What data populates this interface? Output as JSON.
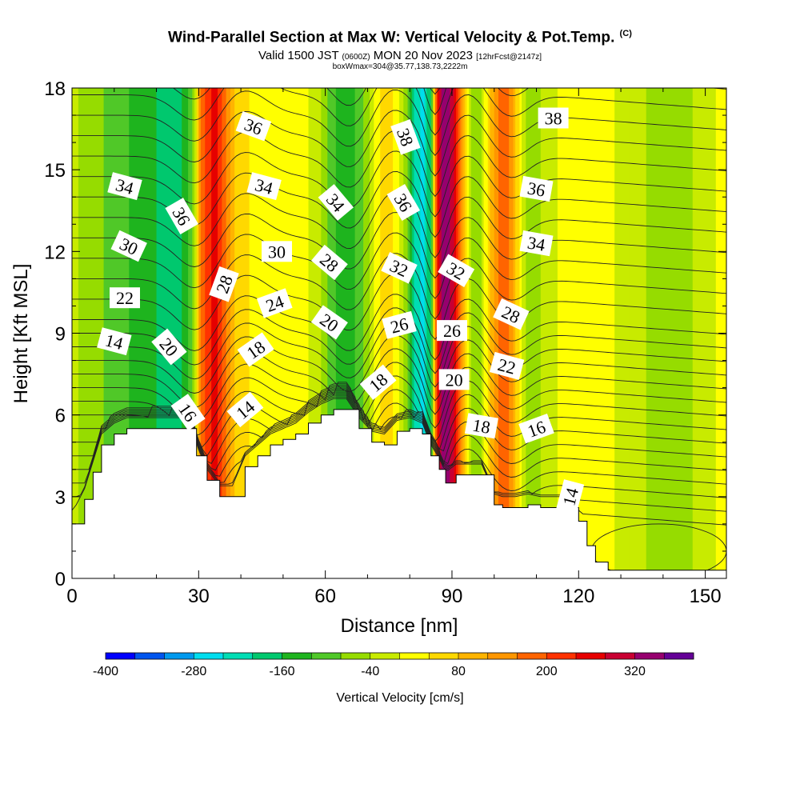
{
  "title": {
    "main": "Wind-Parallel Section at Max W: Vertical Velocity & Pot.Temp.",
    "copyright": "(C)",
    "valid_prefix": "Valid 1500 JST",
    "utc": "(0600Z)",
    "valid_date": "MON 20 Nov 2023",
    "forecast": "[12hrFcst@2147z]",
    "box_info": "boxWmax=304@35.77,138.73,2222m"
  },
  "chart_data": {
    "type": "heatmap",
    "xlabel": "Distance [nm]",
    "ylabel": "Height [Kft MSL]",
    "xlim": [
      0,
      155
    ],
    "ylim": [
      0,
      18
    ],
    "x_ticks": [
      0,
      30,
      60,
      90,
      120,
      150
    ],
    "y_ticks": [
      0,
      3,
      6,
      9,
      12,
      15,
      18
    ],
    "x_tick_labels": [
      "0",
      "30",
      "60",
      "90",
      "120",
      "150"
    ],
    "y_tick_labels": [
      "0",
      "3",
      "6",
      "9",
      "12",
      "15",
      "18"
    ],
    "terrain_kft": [
      [
        0,
        2.0
      ],
      [
        3,
        2.9
      ],
      [
        5,
        3.9
      ],
      [
        7,
        4.9
      ],
      [
        10,
        5.3
      ],
      [
        13,
        5.5
      ],
      [
        16,
        5.5
      ],
      [
        19,
        5.5
      ],
      [
        22,
        5.5
      ],
      [
        25,
        5.5
      ],
      [
        28,
        5.5
      ],
      [
        29.5,
        4.5
      ],
      [
        32,
        3.6
      ],
      [
        35,
        3.0
      ],
      [
        38,
        3.0
      ],
      [
        41,
        4.1
      ],
      [
        44,
        4.5
      ],
      [
        47,
        4.9
      ],
      [
        50,
        5.1
      ],
      [
        53,
        5.3
      ],
      [
        56,
        5.7
      ],
      [
        59,
        6.0
      ],
      [
        62,
        6.2
      ],
      [
        65,
        6.2
      ],
      [
        68,
        5.5
      ],
      [
        71,
        5.0
      ],
      [
        74,
        4.9
      ],
      [
        77,
        5.4
      ],
      [
        80,
        5.5
      ],
      [
        83,
        5.3
      ],
      [
        85,
        4.5
      ],
      [
        87,
        4.0
      ],
      [
        88.5,
        3.5
      ],
      [
        91,
        3.8
      ],
      [
        94,
        3.8
      ],
      [
        97,
        3.8
      ],
      [
        100,
        2.7
      ],
      [
        102,
        2.6
      ],
      [
        105,
        2.6
      ],
      [
        108,
        2.7
      ],
      [
        111,
        2.6
      ],
      [
        114,
        2.6
      ],
      [
        117,
        2.6
      ],
      [
        120,
        2.1
      ],
      [
        122,
        1.2
      ],
      [
        124,
        0.6
      ],
      [
        127,
        0.3
      ],
      [
        135,
        0.3
      ],
      [
        145,
        0.3
      ],
      [
        155,
        0.3
      ]
    ],
    "vertical_velocity_bands": [
      {
        "x": 0,
        "w": -30
      },
      {
        "x": 5,
        "w": -60
      },
      {
        "x": 10,
        "w": -100
      },
      {
        "x": 15,
        "w": -130
      },
      {
        "x": 20,
        "w": -160
      },
      {
        "x": 24,
        "w": -190
      },
      {
        "x": 27,
        "w": -150
      },
      {
        "x": 29,
        "w": -60
      },
      {
        "x": 30,
        "w": 120
      },
      {
        "x": 32,
        "w": 230
      },
      {
        "x": 34,
        "w": 250
      },
      {
        "x": 36,
        "w": 170
      },
      {
        "x": 38,
        "w": 90
      },
      {
        "x": 40,
        "w": 60
      },
      {
        "x": 44,
        "w": 20
      },
      {
        "x": 48,
        "w": 0
      },
      {
        "x": 52,
        "w": 10
      },
      {
        "x": 56,
        "w": 0
      },
      {
        "x": 59,
        "w": -40
      },
      {
        "x": 61,
        "w": -90
      },
      {
        "x": 63,
        "w": -130
      },
      {
        "x": 65,
        "w": -150
      },
      {
        "x": 67,
        "w": -120
      },
      {
        "x": 69,
        "w": -80
      },
      {
        "x": 71,
        "w": -20
      },
      {
        "x": 73,
        "w": 40
      },
      {
        "x": 75,
        "w": 60
      },
      {
        "x": 77,
        "w": 20
      },
      {
        "x": 79,
        "w": -60
      },
      {
        "x": 81,
        "w": -200
      },
      {
        "x": 83,
        "w": -260
      },
      {
        "x": 85,
        "w": -150
      },
      {
        "x": 86,
        "w": 120
      },
      {
        "x": 87,
        "w": 300
      },
      {
        "x": 88,
        "w": 360
      },
      {
        "x": 89.5,
        "w": 330
      },
      {
        "x": 91,
        "w": 230
      },
      {
        "x": 93,
        "w": 60
      },
      {
        "x": 95,
        "w": -70
      },
      {
        "x": 97,
        "w": -40
      },
      {
        "x": 99,
        "w": 70
      },
      {
        "x": 101,
        "w": 170
      },
      {
        "x": 103,
        "w": 200
      },
      {
        "x": 105,
        "w": 90
      },
      {
        "x": 108,
        "w": -70
      },
      {
        "x": 112,
        "w": -30
      },
      {
        "x": 117,
        "w": 20
      },
      {
        "x": 121,
        "w": 40
      },
      {
        "x": 126,
        "w": 20
      },
      {
        "x": 131,
        "w": -20
      },
      {
        "x": 136,
        "w": -40
      },
      {
        "x": 142,
        "w": -60
      },
      {
        "x": 147,
        "w": -40
      },
      {
        "x": 151,
        "w": -10
      },
      {
        "x": 155,
        "w": 20
      }
    ],
    "contour_labels": [
      {
        "text": "36",
        "x": 43,
        "y": 16.6,
        "rot": 20
      },
      {
        "text": "34",
        "x": 12.5,
        "y": 14.4,
        "rot": 15
      },
      {
        "text": "36",
        "x": 26,
        "y": 13.3,
        "rot": 60
      },
      {
        "text": "34",
        "x": 45.5,
        "y": 14.4,
        "rot": 15
      },
      {
        "text": "30",
        "x": 13.5,
        "y": 12.2,
        "rot": 25
      },
      {
        "text": "30",
        "x": 48.5,
        "y": 12.0,
        "rot": 0
      },
      {
        "text": "22",
        "x": 12.5,
        "y": 10.3,
        "rot": 0
      },
      {
        "text": "28",
        "x": 36,
        "y": 10.8,
        "rot": -70
      },
      {
        "text": "24",
        "x": 48,
        "y": 10.1,
        "rot": -20
      },
      {
        "text": "14",
        "x": 10,
        "y": 8.7,
        "rot": 15
      },
      {
        "text": "20",
        "x": 23,
        "y": 8.5,
        "rot": 50
      },
      {
        "text": "18",
        "x": 43.5,
        "y": 8.4,
        "rot": -35
      },
      {
        "text": "16",
        "x": 27.5,
        "y": 6.1,
        "rot": 55
      },
      {
        "text": "14",
        "x": 41,
        "y": 6.2,
        "rot": -40
      },
      {
        "text": "34",
        "x": 62.5,
        "y": 13.8,
        "rot": 50
      },
      {
        "text": "28",
        "x": 61,
        "y": 11.6,
        "rot": 40
      },
      {
        "text": "20",
        "x": 61,
        "y": 9.4,
        "rot": 35
      },
      {
        "text": "38",
        "x": 79,
        "y": 16.2,
        "rot": 70
      },
      {
        "text": "36",
        "x": 78.5,
        "y": 13.8,
        "rot": 60
      },
      {
        "text": "32",
        "x": 77.5,
        "y": 11.4,
        "rot": 25
      },
      {
        "text": "26",
        "x": 77.5,
        "y": 9.3,
        "rot": -15
      },
      {
        "text": "18",
        "x": 72.5,
        "y": 7.2,
        "rot": -40
      },
      {
        "text": "32",
        "x": 91,
        "y": 11.3,
        "rot": 30
      },
      {
        "text": "26",
        "x": 90,
        "y": 9.1,
        "rot": 0
      },
      {
        "text": "20",
        "x": 90.5,
        "y": 7.3,
        "rot": 0
      },
      {
        "text": "18",
        "x": 97,
        "y": 5.6,
        "rot": 10
      },
      {
        "text": "28",
        "x": 104,
        "y": 9.7,
        "rot": 25
      },
      {
        "text": "22",
        "x": 103,
        "y": 7.8,
        "rot": 15
      },
      {
        "text": "16",
        "x": 110,
        "y": 5.5,
        "rot": -20
      },
      {
        "text": "38",
        "x": 114,
        "y": 16.9,
        "rot": 0
      },
      {
        "text": "36",
        "x": 110,
        "y": 14.3,
        "rot": 10
      },
      {
        "text": "34",
        "x": 110,
        "y": 12.3,
        "rot": 10
      },
      {
        "text": "14",
        "x": 118,
        "y": 3.0,
        "rot": -75
      }
    ],
    "colorbar": {
      "label": "Vertical Velocity [cm/s]",
      "min": -400,
      "max": 400,
      "step": 40,
      "tick_labels": [
        "-400",
        "-280",
        "-160",
        "-40",
        "80",
        "200",
        "320"
      ],
      "colors": [
        "#0000ff",
        "#0055ee",
        "#0099ee",
        "#00ddee",
        "#00ddb4",
        "#00c86e",
        "#1eb41e",
        "#50c828",
        "#96dc00",
        "#c8eb00",
        "#ffff00",
        "#ffd800",
        "#ffb400",
        "#ff9600",
        "#ff6400",
        "#ff3200",
        "#e60000",
        "#c80032",
        "#96006e",
        "#640096"
      ]
    }
  }
}
